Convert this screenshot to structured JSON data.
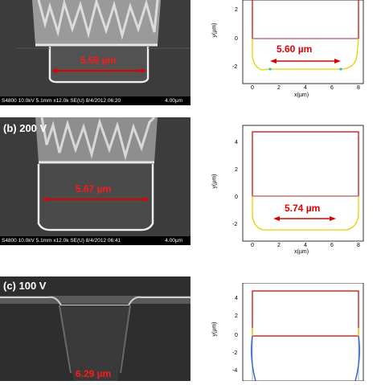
{
  "panels": [
    {
      "id": "a",
      "label": "",
      "sem_measure": "5.59 µm",
      "scalebar": {
        "meta": "S4800 10.0kV 5.1mm x12.0k SE(U) 8/4/2012 06:20",
        "scale": "4.00µm"
      },
      "plot": {
        "measure": "5.60 µm",
        "xlabel": "x(µm)",
        "ylabel": "y(µm)",
        "xticks": [
          "0",
          "2",
          "4",
          "6",
          "8"
        ],
        "yticks": [
          "2",
          "0",
          "-2"
        ]
      }
    },
    {
      "id": "b",
      "label": "(b) 200 V",
      "sem_measure": "5.67 µm",
      "scalebar": {
        "meta": "S4800 10.0kV 5.1mm x12.0k SE(U) 8/4/2012 06:41",
        "scale": "4.00µm"
      },
      "plot": {
        "measure": "5.74 µm",
        "xlabel": "x(µm)",
        "ylabel": "y(µm)",
        "xticks": [
          "0",
          "2",
          "4",
          "6",
          "8"
        ],
        "yticks": [
          "4",
          "2",
          "0",
          "-2"
        ]
      }
    },
    {
      "id": "c",
      "label": "(c) 100 V",
      "sem_measure": "6.29 µm",
      "scalebar": null,
      "plot": {
        "measure": "",
        "xlabel": "",
        "ylabel": "y(µm)",
        "xticks": [],
        "yticks": [
          "4",
          "2",
          "0",
          "-2",
          "-4"
        ]
      }
    }
  ],
  "colors": {
    "frame": "#cc0000",
    "measure": "#e00000",
    "semtext": "#ff1a1a"
  }
}
